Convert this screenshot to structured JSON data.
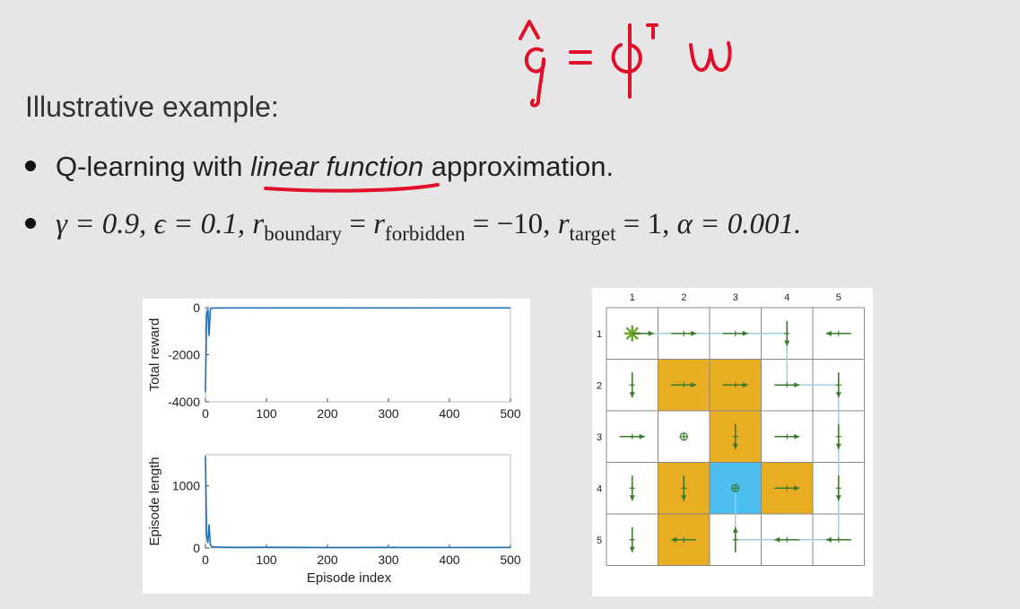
{
  "slide": {
    "title": "Illustrative example:",
    "handwritten_formula": "q̂ = φᵀw",
    "bullets": [
      {
        "before": "Q-learning with ",
        "emph": "linear function",
        "after": " approximation."
      }
    ],
    "params": {
      "gamma": "γ = 0.9,",
      "epsilon": "ϵ = 0.1,",
      "r_label": "r",
      "boundary_sub": "boundary",
      "eq": " = ",
      "forbidden_sub": "forbidden",
      "neg_ten": " = −10, ",
      "target_sub": "target",
      "one": " = 1, ",
      "alpha": "α = 0.001."
    }
  },
  "chart_data": [
    {
      "type": "line",
      "ylabel": "Total reward",
      "xlabel": "",
      "xlim": [
        0,
        500
      ],
      "ylim": [
        -4000,
        0
      ],
      "xticks": [
        "0",
        "100",
        "200",
        "300",
        "400",
        "500"
      ],
      "yticks": [
        "0",
        "-2000",
        "-4000"
      ],
      "series": [
        {
          "values": [
            [
              0,
              -3600
            ],
            [
              2,
              -300
            ],
            [
              4,
              -50
            ],
            [
              6,
              -1200
            ],
            [
              8,
              -80
            ],
            [
              10,
              -20
            ],
            [
              20,
              -15
            ],
            [
              50,
              -10
            ],
            [
              100,
              -12
            ],
            [
              200,
              -10
            ],
            [
              300,
              -14
            ],
            [
              400,
              -10
            ],
            [
              500,
              -12
            ]
          ]
        }
      ],
      "color": "#1f6fb2"
    },
    {
      "type": "line",
      "ylabel": "Episode length",
      "xlabel": "Episode index",
      "xlim": [
        0,
        500
      ],
      "ylim": [
        0,
        1500
      ],
      "xticks": [
        "0",
        "100",
        "200",
        "300",
        "400",
        "500"
      ],
      "yticks": [
        "0",
        "1000"
      ],
      "series": [
        {
          "values": [
            [
              0,
              1480
            ],
            [
              2,
              200
            ],
            [
              4,
              80
            ],
            [
              6,
              380
            ],
            [
              8,
              60
            ],
            [
              10,
              20
            ],
            [
              20,
              15
            ],
            [
              50,
              10
            ],
            [
              100,
              12
            ],
            [
              200,
              8
            ],
            [
              300,
              10
            ],
            [
              400,
              9
            ],
            [
              500,
              10
            ]
          ]
        }
      ],
      "color": "#1f6fb2"
    }
  ],
  "grid_world": {
    "col_labels": [
      "1",
      "2",
      "3",
      "4",
      "5"
    ],
    "row_labels": [
      "1",
      "2",
      "3",
      "4",
      "5"
    ],
    "colors": {
      "forbidden": "#e9ad24",
      "target": "#4cbfef",
      "arrow": "#3a7a2a",
      "path": "#9fd0e0",
      "grid": "#888888"
    },
    "forbidden_cells": [
      [
        2,
        2
      ],
      [
        2,
        3
      ],
      [
        3,
        3
      ],
      [
        4,
        2
      ],
      [
        4,
        4
      ],
      [
        5,
        2
      ]
    ],
    "target_cell": [
      4,
      3
    ],
    "start_cell": [
      1,
      1
    ],
    "actions": [
      [
        "start",
        "right",
        "right",
        "down",
        "left"
      ],
      [
        "down",
        "right",
        "right",
        "right",
        "down"
      ],
      [
        "right",
        "stay",
        "down",
        "right",
        "down"
      ],
      [
        "down",
        "down",
        "stay",
        "right",
        "down"
      ],
      [
        "down",
        "left",
        "up",
        "left",
        "left"
      ]
    ]
  }
}
